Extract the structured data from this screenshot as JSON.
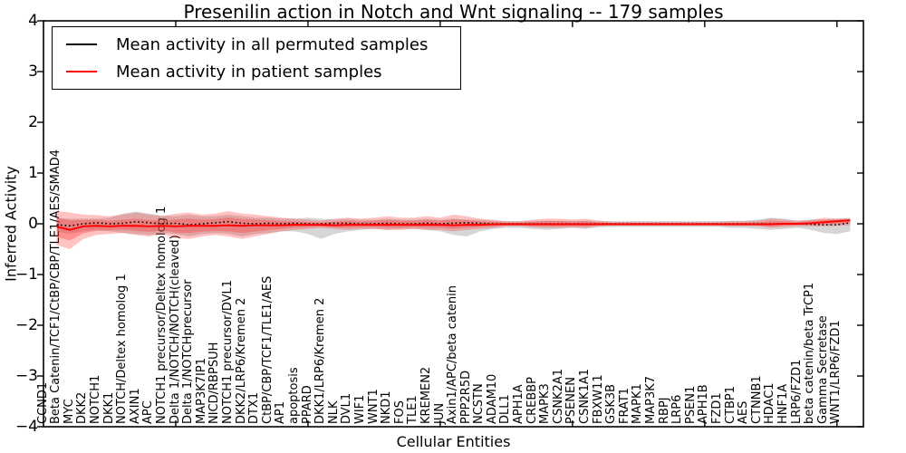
{
  "chart_data": {
    "type": "line",
    "title": "Presenilin action in Notch and Wnt signaling -- 179 samples",
    "xlabel": "Cellular Entities",
    "ylabel": "Inferred Activity",
    "ylim": [
      -4,
      4
    ],
    "xlim": [
      0,
      62
    ],
    "yticks": [
      4,
      3,
      2,
      1,
      0,
      -1,
      -2,
      -3,
      -4
    ],
    "ytick_labels": [
      "4",
      "3",
      "2",
      "1",
      "0",
      "−1",
      "−2",
      "−3",
      "−4"
    ],
    "xticks_top": [
      10,
      20,
      30,
      40,
      50,
      60
    ],
    "grid": false,
    "legend_position": "upper left",
    "categories": [
      "CCND1",
      "Beta Catenin/TCF1/CtBP/CBP/TLE1/AES/SMAD4",
      "MYC",
      "DKK2",
      "NOTCH1",
      "DKK1",
      "NOTCH/Deltex homolog 1",
      "AXIN1",
      "APC",
      "NOTCH1 precursor/Deltex homolog 1",
      "Delta 1/NOTCH/NOTCH(cleaved)",
      "Delta 1/NOTCHprecursor",
      "MAP3K7IP1",
      "NICD/RBPSUH",
      "NOTCH1 precursor/DVL1",
      "DKK2/LRP6/Kremen 2",
      "DTX1",
      "CtBP/CBP/TCF1/TLE1/AES",
      "AP1",
      "apoptosis",
      "PPARD",
      "DKK1/LRP6/Kremen 2",
      "NLK",
      "DVL1",
      "WIF1",
      "WNT1",
      "NKD1",
      "FOS",
      "TLE1",
      "KREMEN2",
      "JUN",
      "Axin1/APC/beta catenin",
      "PPP2R5D",
      "NCSTN",
      "ADAM10",
      "DLL1",
      "APH1A",
      "CREBBP",
      "MAPK3",
      "CSNK2A1",
      "PSENEN",
      "CSNK1A1",
      "FBXW11",
      "GSK3B",
      "FRAT1",
      "MAPK1",
      "MAP3K7",
      "RBPJ",
      "LRP6",
      "PSEN1",
      "APH1B",
      "FZD1",
      "CTBP1",
      "AES",
      "CTNNB1",
      "HDAC1",
      "HNF1A",
      "LRP6/FZD1",
      "beta catenin/beta TrCP1",
      "Gamma Secretase",
      "WNT1/LRP6/FZD1"
    ],
    "series": [
      {
        "name": "Mean activity in all permuted samples",
        "color": "#000000",
        "line_style": "dotted",
        "legend_sample": "solid",
        "values": [
          -0.02,
          -0.04,
          0,
          0.02,
          0,
          0.01,
          0.04,
          0.02,
          0,
          0.01,
          -0.02,
          0,
          0.02,
          0.04,
          0.01,
          0,
          0.01,
          0,
          0.01,
          0,
          0,
          0.01,
          0.01,
          0,
          0,
          0.01,
          0,
          0,
          0.01,
          0,
          0.01,
          0.02,
          0.01,
          0,
          0,
          0,
          0,
          0,
          0,
          0,
          0,
          0,
          0,
          0,
          0,
          0,
          0,
          0,
          0,
          0,
          0,
          0,
          0,
          0,
          0,
          0,
          0,
          -0.01,
          -0.02,
          -0.02,
          0.02
        ]
      },
      {
        "name": "Mean activity in patient samples",
        "color": "#ff0000",
        "line_style": "solid",
        "legend_sample": "solid",
        "values": [
          -0.06,
          -0.12,
          -0.05,
          -0.04,
          -0.05,
          -0.04,
          -0.04,
          -0.05,
          -0.04,
          -0.05,
          -0.04,
          -0.04,
          -0.04,
          -0.03,
          -0.04,
          -0.03,
          -0.03,
          -0.03,
          -0.02,
          -0.02,
          -0.02,
          -0.03,
          -0.02,
          -0.02,
          -0.02,
          -0.02,
          -0.02,
          -0.02,
          -0.02,
          -0.02,
          -0.03,
          -0.02,
          -0.02,
          -0.01,
          -0.01,
          -0.01,
          -0.01,
          -0.01,
          -0.01,
          -0.01,
          -0.01,
          -0.01,
          -0.01,
          -0.01,
          -0.01,
          -0.01,
          -0.01,
          -0.01,
          -0.01,
          -0.01,
          -0.01,
          -0.01,
          -0.01,
          -0.01,
          -0.01,
          0,
          0,
          0.01,
          0.03,
          0.05,
          0.07
        ]
      }
    ],
    "bands": [
      {
        "name": "permuted-samples-range",
        "fill": "rgba(120,120,120,0.30)",
        "hi": [
          0.12,
          0.1,
          0.1,
          0.1,
          0.12,
          0.2,
          0.24,
          0.2,
          0.16,
          0.15,
          0.18,
          0.15,
          0.15,
          0.18,
          0.15,
          0.12,
          0.12,
          0.1,
          0.1,
          0.12,
          0.1,
          0.08,
          0.1,
          0.08,
          0.08,
          0.1,
          0.08,
          0.08,
          0.1,
          0.08,
          0.1,
          0.08,
          0.08,
          0.06,
          0.05,
          0.05,
          0.06,
          0.06,
          0.06,
          0.06,
          0.06,
          0.05,
          0.05,
          0.05,
          0.05,
          0.05,
          0.05,
          0.05,
          0.05,
          0.05,
          0.05,
          0.06,
          0.06,
          0.08,
          0.12,
          0.1,
          0.06,
          0.08,
          0.08,
          0.1,
          0.12
        ],
        "lo": [
          -0.15,
          -0.2,
          -0.15,
          -0.12,
          -0.15,
          -0.18,
          -0.2,
          -0.22,
          -0.18,
          -0.2,
          -0.25,
          -0.2,
          -0.18,
          -0.2,
          -0.25,
          -0.2,
          -0.18,
          -0.15,
          -0.15,
          -0.2,
          -0.3,
          -0.2,
          -0.15,
          -0.12,
          -0.1,
          -0.12,
          -0.1,
          -0.1,
          -0.12,
          -0.15,
          -0.22,
          -0.25,
          -0.15,
          -0.1,
          -0.08,
          -0.08,
          -0.1,
          -0.12,
          -0.1,
          -0.08,
          -0.1,
          -0.07,
          -0.06,
          -0.06,
          -0.06,
          -0.06,
          -0.06,
          -0.06,
          -0.06,
          -0.06,
          -0.06,
          -0.08,
          -0.08,
          -0.1,
          -0.12,
          -0.1,
          -0.08,
          -0.12,
          -0.18,
          -0.2,
          -0.15
        ]
      },
      {
        "name": "patient-samples-range-outer",
        "fill": "rgba(255,40,40,0.28)",
        "hi": [
          0.25,
          0.22,
          0.18,
          0.17,
          0.15,
          0.18,
          0.22,
          0.18,
          0.15,
          0.2,
          0.22,
          0.18,
          0.2,
          0.25,
          0.2,
          0.18,
          0.15,
          0.12,
          0.1,
          0.08,
          0.06,
          0.1,
          0.12,
          0.1,
          0.12,
          0.15,
          0.12,
          0.12,
          0.15,
          0.12,
          0.18,
          0.15,
          0.1,
          0.08,
          0.05,
          0.05,
          0.08,
          0.1,
          0.1,
          0.08,
          0.1,
          0.06,
          0.04,
          0.04,
          0.04,
          0.04,
          0.04,
          0.04,
          0.04,
          0.04,
          0.04,
          0.05,
          0.05,
          0.06,
          0.1,
          0.08,
          0.06,
          0.08,
          0.12,
          0.1,
          0.1
        ],
        "lo": [
          -0.42,
          -0.5,
          -0.3,
          -0.22,
          -0.2,
          -0.18,
          -0.22,
          -0.25,
          -0.2,
          -0.28,
          -0.3,
          -0.25,
          -0.22,
          -0.25,
          -0.3,
          -0.25,
          -0.2,
          -0.15,
          -0.12,
          -0.1,
          -0.08,
          -0.1,
          -0.12,
          -0.1,
          -0.1,
          -0.12,
          -0.12,
          -0.1,
          -0.12,
          -0.12,
          -0.15,
          -0.12,
          -0.1,
          -0.08,
          -0.05,
          -0.05,
          -0.07,
          -0.08,
          -0.08,
          -0.07,
          -0.08,
          -0.05,
          -0.04,
          -0.04,
          -0.04,
          -0.04,
          -0.04,
          -0.04,
          -0.04,
          -0.04,
          -0.04,
          -0.05,
          -0.05,
          -0.05,
          -0.08,
          -0.06,
          -0.05,
          -0.05,
          -0.05,
          -0.04,
          -0.03
        ]
      },
      {
        "name": "patient-samples-range-inner",
        "fill": "rgba(255,40,40,0.32)",
        "ratio_of_outer": 0.55
      }
    ]
  }
}
